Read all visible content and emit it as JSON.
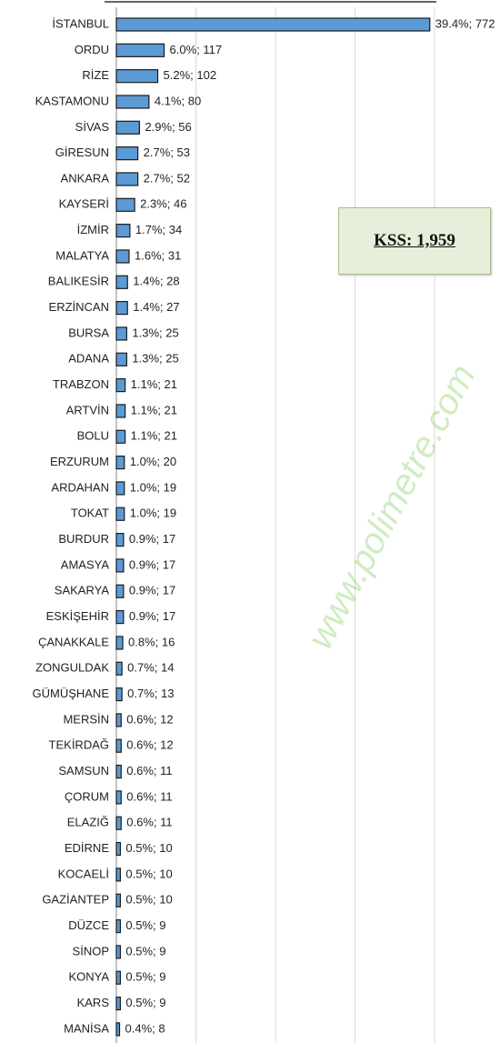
{
  "chart_data": {
    "type": "bar",
    "orientation": "horizontal",
    "categories": [
      "İSTANBUL",
      "ORDU",
      "RİZE",
      "KASTAMONU",
      "SİVAS",
      "GİRESUN",
      "ANKARA",
      "KAYSERİ",
      "İZMİR",
      "MALATYA",
      "BALIKESİR",
      "ERZİNCAN",
      "BURSA",
      "ADANA",
      "TRABZON",
      "ARTVİN",
      "BOLU",
      "ERZURUM",
      "ARDAHAN",
      "TOKAT",
      "BURDUR",
      "AMASYA",
      "SAKARYA",
      "ESKİŞEHİR",
      "ÇANAKKALE",
      "ZONGULDAK",
      "GÜMÜŞHANE",
      "MERSİN",
      "TEKİRDAĞ",
      "SAMSUN",
      "ÇORUM",
      "ELAZIĞ",
      "EDİRNE",
      "KOCAELİ",
      "GAZİANTEP",
      "DÜZCE",
      "SİNOP",
      "KONYA",
      "KARS",
      "MANİSA"
    ],
    "values": [
      39.4,
      6.0,
      5.2,
      4.1,
      2.9,
      2.7,
      2.7,
      2.3,
      1.7,
      1.6,
      1.4,
      1.4,
      1.3,
      1.3,
      1.1,
      1.1,
      1.1,
      1.0,
      1.0,
      1.0,
      0.9,
      0.9,
      0.9,
      0.9,
      0.8,
      0.7,
      0.7,
      0.6,
      0.6,
      0.6,
      0.6,
      0.6,
      0.5,
      0.5,
      0.5,
      0.5,
      0.5,
      0.5,
      0.5,
      0.4
    ],
    "value_labels": [
      "39.4%; 772",
      "6.0%; 117",
      "5.2%; 102",
      "4.1%; 80",
      "2.9%; 56",
      "2.7%; 53",
      "2.7%; 52",
      "2.3%; 46",
      "1.7%; 34",
      "1.6%; 31",
      "1.4%; 28",
      "1.4%; 27",
      "1.3%; 25",
      "1.3%; 25",
      "1.1%; 21",
      "1.1%; 21",
      "1.1%; 21",
      "1.0%; 20",
      "1.0%; 19",
      "1.0%; 19",
      "0.9%; 17",
      "0.9%; 17",
      "0.9%; 17",
      "0.9%; 17",
      "0.8%; 16",
      "0.7%; 14",
      "0.7%; 13",
      "0.6%; 12",
      "0.6%; 12",
      "0.6%; 11",
      "0.6%; 11",
      "0.6%; 11",
      "0.5%; 10",
      "0.5%; 10",
      "0.5%; 10",
      "0.5%; 9",
      "0.5%; 9",
      "0.5%; 9",
      "0.5%; 9",
      "0.4%; 8"
    ],
    "color": "#5b9bd5",
    "xlim": [
      0,
      48
    ],
    "xticks": [
      0,
      10,
      20,
      30,
      40
    ],
    "grid": true,
    "annotation": "KSS: 1,959",
    "watermark": "www.polimetre.com"
  }
}
